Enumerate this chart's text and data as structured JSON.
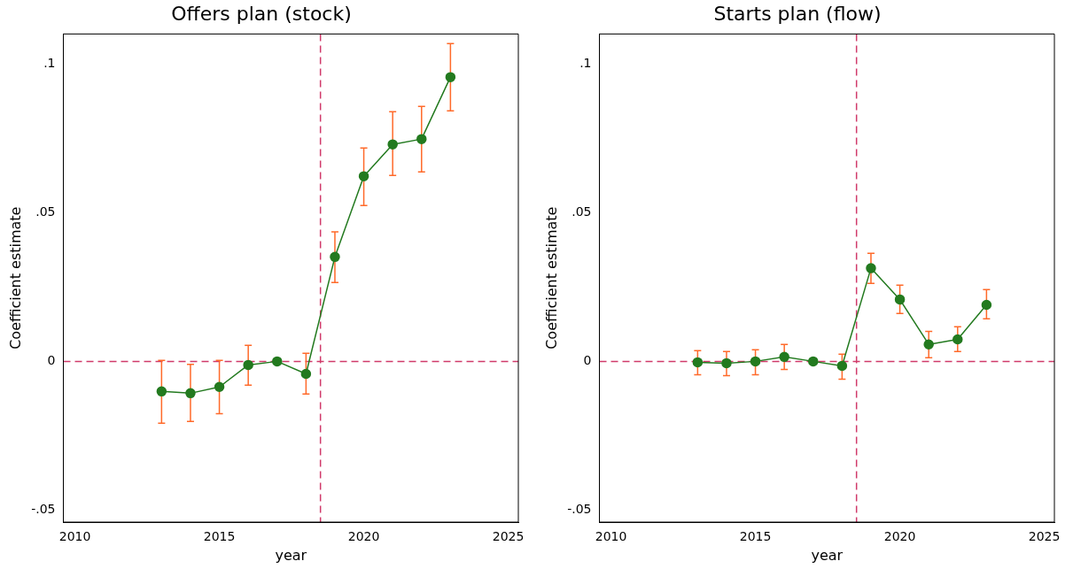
{
  "chart_data": [
    {
      "type": "line",
      "title": "Offers plan (stock)",
      "xlabel": "year",
      "ylabel": "Coefficient estimate",
      "x": [
        2013,
        2014,
        2015,
        2016,
        2017,
        2018,
        2019,
        2020,
        2021,
        2022,
        2023
      ],
      "series": [
        {
          "color": "#237a1f",
          "values": [
            -0.0101,
            -0.0107,
            -0.0086,
            -0.0012,
            0,
            -0.0042,
            0.0351,
            0.0622,
            0.0729,
            0.0747,
            0.0955
          ],
          "errors": [
            [
              -0.0208,
              0.0003
            ],
            [
              -0.0202,
              -0.001
            ],
            [
              -0.0176,
              0.0003
            ],
            [
              -0.008,
              0.0054
            ],
            null,
            [
              -0.011,
              0.0027
            ],
            [
              0.0265,
              0.0435
            ],
            [
              0.0524,
              0.0717
            ],
            [
              0.0625,
              0.0839
            ],
            [
              0.0637,
              0.0857
            ],
            [
              0.0842,
              0.1068
            ]
          ]
        }
      ],
      "xlim": [
        2009.6,
        2025.35
      ],
      "xticks": [
        2010,
        2015,
        2020,
        2025
      ],
      "ylim": [
        -0.054,
        0.11
      ],
      "yticks": [
        {
          "value": -0.05,
          "label": "-.05"
        },
        {
          "value": 0,
          "label": "0"
        },
        {
          "value": 0.05,
          "label": ".05"
        },
        {
          "value": 0.1,
          "label": ".1"
        }
      ],
      "ref_lines": [
        {
          "axis": "x",
          "value": 2018.5,
          "color": "#d03a6a",
          "line_style": "dashed"
        },
        {
          "axis": "y",
          "value": 0,
          "color": "#d03a6a",
          "line_style": "dashed"
        }
      ],
      "grid": false,
      "legend": false,
      "marker": "circle",
      "line_style": "solid"
    },
    {
      "type": "line",
      "title": "Starts plan (flow)",
      "xlabel": "year",
      "ylabel": "Coefficient estimate",
      "x": [
        2013,
        2014,
        2015,
        2016,
        2017,
        2018,
        2019,
        2020,
        2021,
        2022,
        2023
      ],
      "series": [
        {
          "color": "#237a1f",
          "values": [
            -0.0003,
            -0.0006,
            0,
            0.0015,
            0,
            -0.0015,
            0.0313,
            0.0208,
            0.0057,
            0.0074,
            0.019
          ],
          "errors": [
            [
              -0.0045,
              0.0036
            ],
            [
              -0.0048,
              0.0033
            ],
            [
              -0.0045,
              0.0039
            ],
            [
              -0.0027,
              0.0057
            ],
            null,
            [
              -0.006,
              0.0024
            ],
            [
              0.0262,
              0.0363
            ],
            [
              0.0161,
              0.0256
            ],
            [
              0.0012,
              0.0101
            ],
            [
              0.0033,
              0.0116
            ],
            [
              0.0143,
              0.0241
            ]
          ]
        }
      ],
      "xlim": [
        2009.6,
        2025.35
      ],
      "xticks": [
        2010,
        2015,
        2020,
        2025
      ],
      "ylim": [
        -0.054,
        0.11
      ],
      "yticks": [
        {
          "value": -0.05,
          "label": "-.05"
        },
        {
          "value": 0,
          "label": "0"
        },
        {
          "value": 0.05,
          "label": ".05"
        },
        {
          "value": 0.1,
          "label": ".1"
        }
      ],
      "ref_lines": [
        {
          "axis": "x",
          "value": 2018.5,
          "color": "#d03a6a",
          "line_style": "dashed"
        },
        {
          "axis": "y",
          "value": 0,
          "color": "#d03a6a",
          "line_style": "dashed"
        }
      ],
      "grid": false,
      "legend": false,
      "marker": "circle",
      "line_style": "solid"
    }
  ]
}
